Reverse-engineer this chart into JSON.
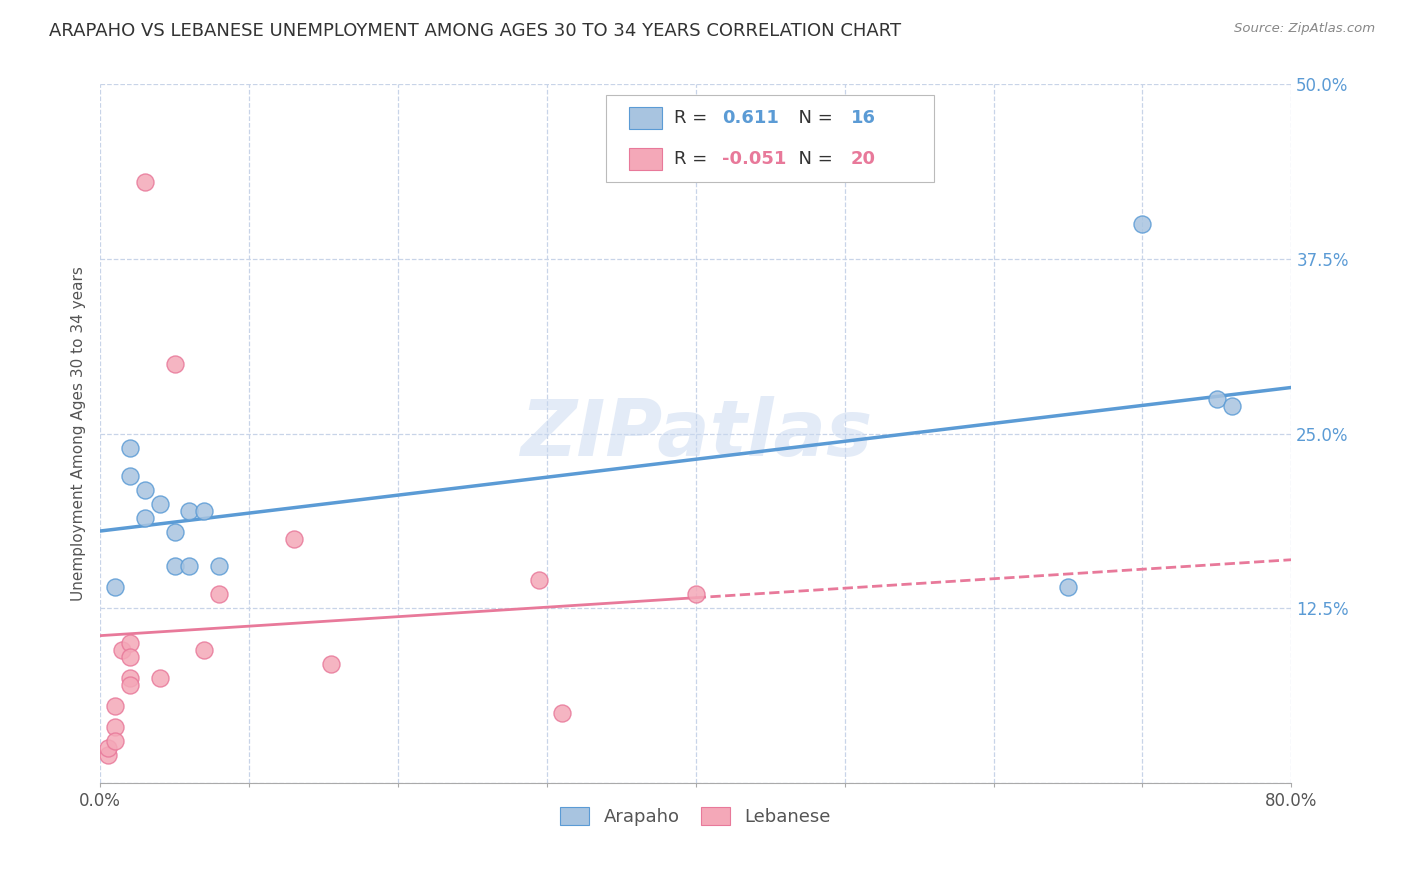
{
  "title": "ARAPAHO VS LEBANESE UNEMPLOYMENT AMONG AGES 30 TO 34 YEARS CORRELATION CHART",
  "source": "Source: ZipAtlas.com",
  "ylabel": "Unemployment Among Ages 30 to 34 years",
  "xlim": [
    0.0,
    0.8
  ],
  "ylim": [
    0.0,
    0.5
  ],
  "xticks": [
    0.0,
    0.1,
    0.2,
    0.3,
    0.4,
    0.5,
    0.6,
    0.7,
    0.8
  ],
  "yticks": [
    0.0,
    0.125,
    0.25,
    0.375,
    0.5
  ],
  "arapaho_color": "#a8c4e0",
  "lebanese_color": "#f4a8b8",
  "arapaho_line_color": "#5b9bd5",
  "lebanese_line_color": "#e8799a",
  "arapaho_scatter_x": [
    0.01,
    0.02,
    0.02,
    0.03,
    0.03,
    0.04,
    0.05,
    0.05,
    0.06,
    0.06,
    0.07,
    0.08,
    0.65,
    0.7,
    0.75,
    0.76
  ],
  "arapaho_scatter_y": [
    0.14,
    0.24,
    0.22,
    0.21,
    0.19,
    0.2,
    0.18,
    0.155,
    0.195,
    0.155,
    0.195,
    0.155,
    0.14,
    0.4,
    0.275,
    0.27
  ],
  "lebanese_scatter_x": [
    0.005,
    0.005,
    0.01,
    0.01,
    0.01,
    0.015,
    0.02,
    0.02,
    0.02,
    0.02,
    0.03,
    0.04,
    0.05,
    0.07,
    0.08,
    0.13,
    0.155,
    0.295,
    0.31,
    0.4
  ],
  "lebanese_scatter_y": [
    0.02,
    0.025,
    0.04,
    0.055,
    0.03,
    0.095,
    0.1,
    0.09,
    0.075,
    0.07,
    0.43,
    0.075,
    0.3,
    0.095,
    0.135,
    0.175,
    0.085,
    0.145,
    0.05,
    0.135
  ],
  "arapaho_R": 0.611,
  "arapaho_N": 16,
  "lebanese_R": -0.051,
  "lebanese_N": 20,
  "watermark": "ZIPatlas",
  "background_color": "#ffffff",
  "grid_color": "#c8d4e8",
  "title_fontsize": 13,
  "axis_label_fontsize": 11,
  "tick_fontsize": 12,
  "right_tick_color": "#5b9bd5",
  "scatter_size": 150
}
